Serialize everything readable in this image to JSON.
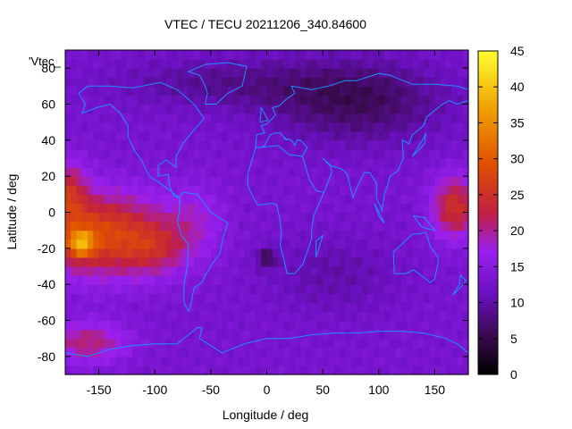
{
  "chart_data": {
    "type": "heatmap",
    "title": "VTEC / TECU 20211206_340.84600",
    "xlabel": "Longitude / deg",
    "ylabel": "Latitude / deg",
    "key_label": "'Vtec_",
    "xlim": [
      -180,
      180
    ],
    "ylim": [
      -90,
      90
    ],
    "x_ticks": [
      -150,
      -100,
      -50,
      0,
      50,
      100,
      150
    ],
    "y_ticks": [
      -80,
      -60,
      -40,
      -20,
      0,
      20,
      40,
      60,
      80
    ],
    "colorbar": {
      "range": [
        0,
        45
      ],
      "ticks": [
        0,
        5,
        10,
        15,
        20,
        25,
        30,
        35,
        40,
        45
      ],
      "palette": [
        "#000000",
        "#3a0a4e",
        "#6a10c0",
        "#9a20f0",
        "#c02040",
        "#e05000",
        "#f0a000",
        "#ffff30"
      ]
    },
    "grid": false,
    "coastlines_color": "#1e90ff",
    "field_features": [
      {
        "lon": -165,
        "lat": -17,
        "vtec": 44
      },
      {
        "lon": -130,
        "lat": -12,
        "vtec": 32
      },
      {
        "lon": -105,
        "lat": -22,
        "vtec": 27
      },
      {
        "lon": -175,
        "lat": 10,
        "vtec": 22
      },
      {
        "lon": 165,
        "lat": 2,
        "vtec": 24
      },
      {
        "lon": -160,
        "lat": -70,
        "vtec": 22
      },
      {
        "lon": 80,
        "lat": 62,
        "vtec": 2
      },
      {
        "lon": 0,
        "lat": -25,
        "vtec": 3
      }
    ]
  }
}
